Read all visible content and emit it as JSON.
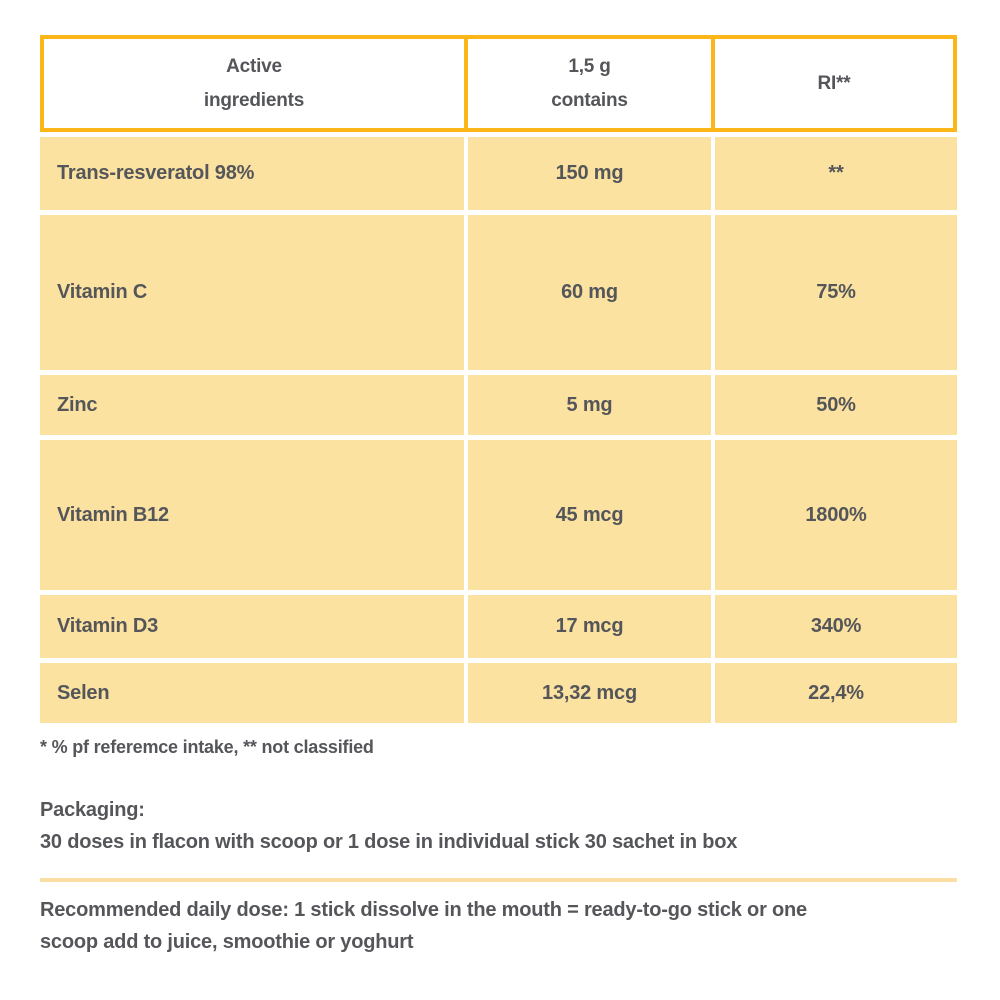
{
  "colors": {
    "accent_orange": "#FBB71A",
    "cell_yellow": "#FBE2A1",
    "text_gray": "#55565A",
    "divider_yellow": "#F9E0A2"
  },
  "table": {
    "header": {
      "col1_line1": "Active",
      "col1_line2": "ingredients",
      "col2_line1": "1,5 g",
      "col2_line2": "contains",
      "col3": "RI**"
    },
    "rows": [
      {
        "name": "Trans-resveratol 98%",
        "amount": "150 mg",
        "ri": "**"
      },
      {
        "name": "Vitamin C",
        "amount": "60 mg",
        "ri": "75%"
      },
      {
        "name": "Zinc",
        "amount": "5 mg",
        "ri": "50%"
      },
      {
        "name": "Vitamin B12",
        "amount": "45 mcg",
        "ri": "1800%"
      },
      {
        "name": "Vitamin D3",
        "amount": "17 mcg",
        "ri": "340%"
      },
      {
        "name": "Selen",
        "amount": "13,32 mcg",
        "ri": "22,4%"
      }
    ],
    "footnote": "* % pf referemce intake, ** not classified"
  },
  "packaging": {
    "label": "Packaging:",
    "text": "30 doses in flacon with scoop or 1 dose in individual stick 30 sachet in box"
  },
  "recommended": {
    "line1": "Recommended daily dose: 1 stick dissolve in the mouth = ready-to-go stick or one",
    "line2": "scoop add to juice, smoothie or yoghurt"
  }
}
